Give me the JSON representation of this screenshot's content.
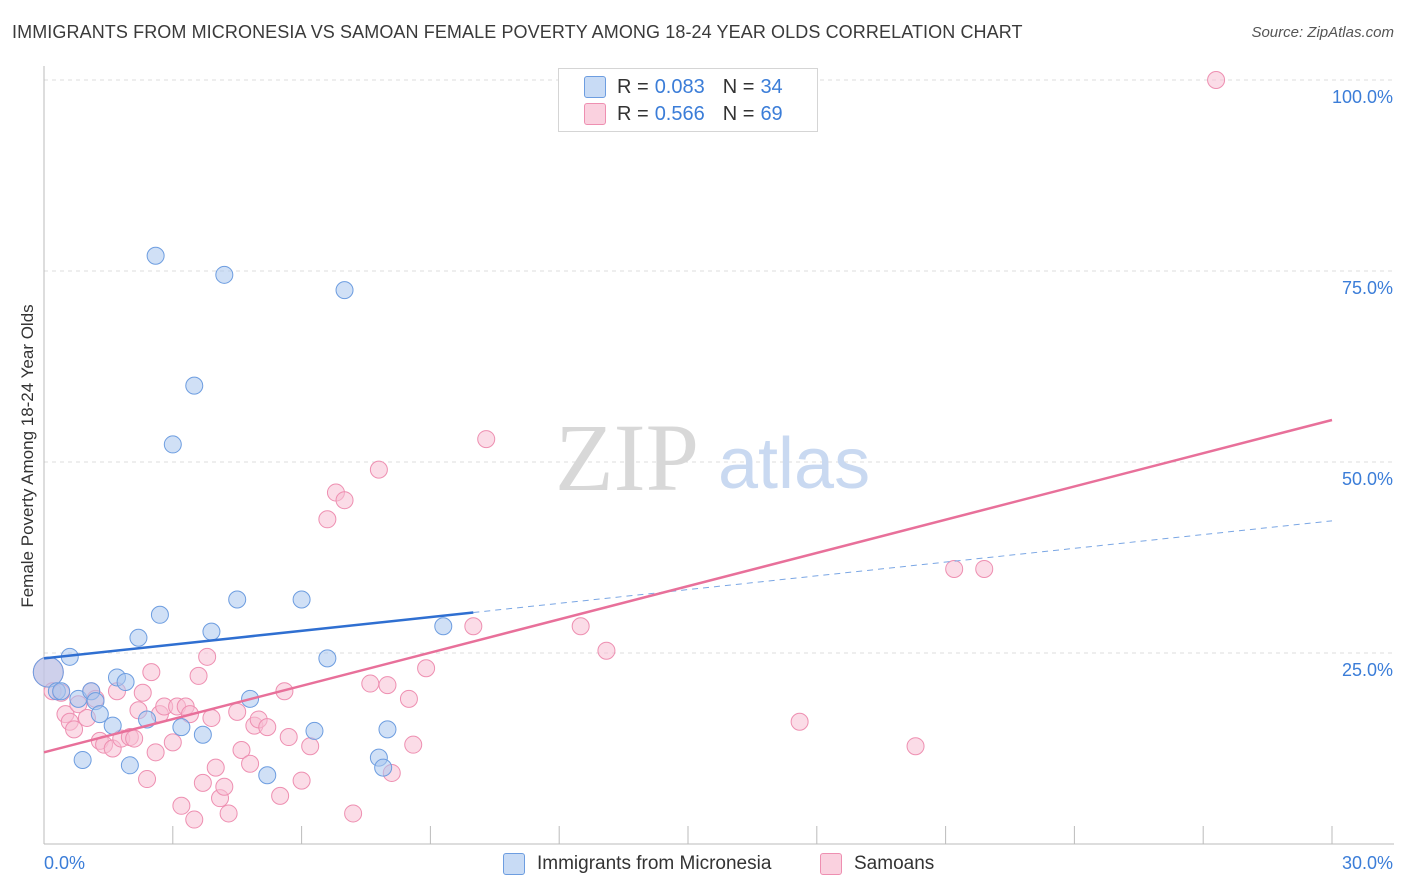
{
  "title": "IMMIGRANTS FROM MICRONESIA VS SAMOAN FEMALE POVERTY AMONG 18-24 YEAR OLDS CORRELATION CHART",
  "source": "Source: ZipAtlas.com",
  "watermark": {
    "zip": "ZIP",
    "atlas": "atlas"
  },
  "legend": {
    "rows": [
      {
        "r_label": "R =",
        "r_value": "0.083",
        "n_label": "N =",
        "n_value": "34",
        "color": "#a9c6ef",
        "border": "#6d9de0"
      },
      {
        "r_label": "R =",
        "r_value": "0.566",
        "n_label": "N =",
        "n_value": "69",
        "color": "#f7bfd3",
        "border": "#ee8fb1"
      }
    ]
  },
  "chart_data": {
    "type": "scatter",
    "title": "IMMIGRANTS FROM MICRONESIA VS SAMOAN FEMALE POVERTY AMONG 18-24 YEAR OLDS CORRELATION CHART",
    "xlabel": "",
    "ylabel": "Female Poverty Among 18-24 Year Olds",
    "xlim": [
      0,
      30
    ],
    "ylim": [
      0,
      100
    ],
    "x_tick_labels": [
      "0.0%",
      "30.0%"
    ],
    "y_tick_labels": [
      "25.0%",
      "50.0%",
      "75.0%",
      "100.0%"
    ],
    "y_ticks": [
      25,
      50,
      75,
      100
    ],
    "grid": true,
    "legend_position": "top-center",
    "series": [
      {
        "name": "Immigrants from Micronesia",
        "color": "#a9c6ef",
        "stroke": "#6d9de0",
        "line_color": "#2f6fd1",
        "trend": {
          "x0": 0,
          "y0": 24.3,
          "x1": 10.0,
          "y1": 30.3,
          "dash_x1": 30,
          "dash_y1": 42.3
        },
        "points": [
          [
            0.1,
            22.5
          ],
          [
            0.3,
            20.0
          ],
          [
            0.4,
            20.0
          ],
          [
            0.6,
            24.5
          ],
          [
            0.8,
            19.0
          ],
          [
            0.9,
            11.0
          ],
          [
            1.1,
            20.0
          ],
          [
            1.2,
            18.7
          ],
          [
            1.3,
            17.0
          ],
          [
            1.6,
            15.5
          ],
          [
            1.7,
            21.8
          ],
          [
            1.9,
            21.2
          ],
          [
            2.0,
            10.3
          ],
          [
            2.2,
            27.0
          ],
          [
            2.4,
            16.3
          ],
          [
            2.6,
            77.0
          ],
          [
            2.7,
            30.0
          ],
          [
            3.0,
            52.3
          ],
          [
            3.2,
            15.3
          ],
          [
            3.5,
            60.0
          ],
          [
            3.7,
            14.3
          ],
          [
            3.9,
            27.8
          ],
          [
            4.2,
            74.5
          ],
          [
            4.5,
            32.0
          ],
          [
            4.8,
            19.0
          ],
          [
            5.2,
            9.0
          ],
          [
            6.0,
            32.0
          ],
          [
            6.3,
            14.8
          ],
          [
            6.6,
            24.3
          ],
          [
            7.0,
            72.5
          ],
          [
            7.8,
            11.3
          ],
          [
            7.9,
            10.0
          ],
          [
            8.0,
            15.0
          ],
          [
            9.3,
            28.5
          ]
        ]
      },
      {
        "name": "Samoans",
        "color": "#f7bfd3",
        "stroke": "#ee8fb1",
        "line_color": "#e8709a",
        "trend": {
          "x0": 0,
          "y0": 12.0,
          "x1": 30,
          "y1": 55.5
        },
        "points": [
          [
            0.1,
            22.5
          ],
          [
            0.2,
            20.0
          ],
          [
            0.4,
            19.8
          ],
          [
            0.5,
            17.0
          ],
          [
            0.6,
            16.0
          ],
          [
            0.7,
            15.0
          ],
          [
            0.8,
            18.3
          ],
          [
            1.0,
            16.5
          ],
          [
            1.1,
            20.0
          ],
          [
            1.2,
            19.0
          ],
          [
            1.3,
            13.5
          ],
          [
            1.4,
            13.0
          ],
          [
            1.6,
            12.5
          ],
          [
            1.7,
            20.0
          ],
          [
            1.8,
            13.8
          ],
          [
            2.0,
            14.0
          ],
          [
            2.1,
            13.8
          ],
          [
            2.2,
            17.5
          ],
          [
            2.3,
            19.8
          ],
          [
            2.4,
            8.5
          ],
          [
            2.5,
            22.5
          ],
          [
            2.7,
            17.0
          ],
          [
            2.8,
            18.0
          ],
          [
            3.0,
            13.3
          ],
          [
            3.1,
            18.0
          ],
          [
            3.2,
            5.0
          ],
          [
            3.3,
            18.0
          ],
          [
            3.4,
            17.0
          ],
          [
            3.5,
            3.2
          ],
          [
            3.6,
            22.0
          ],
          [
            3.7,
            8.0
          ],
          [
            3.8,
            24.5
          ],
          [
            3.9,
            16.5
          ],
          [
            4.0,
            10.0
          ],
          [
            4.1,
            6.0
          ],
          [
            4.2,
            7.5
          ],
          [
            4.3,
            4.0
          ],
          [
            4.5,
            17.3
          ],
          [
            4.6,
            12.3
          ],
          [
            4.8,
            10.5
          ],
          [
            4.9,
            15.5
          ],
          [
            5.0,
            16.3
          ],
          [
            5.2,
            15.3
          ],
          [
            5.5,
            6.3
          ],
          [
            5.6,
            20.0
          ],
          [
            6.0,
            8.3
          ],
          [
            6.2,
            12.8
          ],
          [
            6.6,
            42.5
          ],
          [
            6.8,
            46.0
          ],
          [
            7.0,
            45.0
          ],
          [
            7.2,
            4.0
          ],
          [
            7.6,
            21.0
          ],
          [
            7.8,
            49.0
          ],
          [
            8.0,
            20.8
          ],
          [
            8.1,
            9.3
          ],
          [
            8.5,
            19.0
          ],
          [
            8.9,
            23.0
          ],
          [
            10.0,
            28.5
          ],
          [
            10.3,
            53.0
          ],
          [
            12.5,
            28.5
          ],
          [
            13.1,
            25.3
          ],
          [
            17.6,
            16.0
          ],
          [
            20.3,
            12.8
          ],
          [
            21.2,
            36.0
          ],
          [
            21.9,
            36.0
          ],
          [
            27.3,
            100.0
          ],
          [
            2.6,
            12.0
          ],
          [
            5.7,
            14.0
          ],
          [
            8.6,
            13.0
          ]
        ]
      }
    ]
  }
}
